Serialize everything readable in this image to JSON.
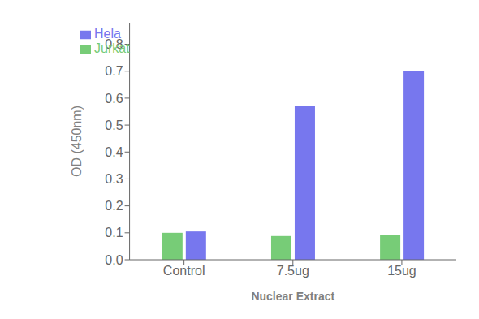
{
  "chart_data": {
    "type": "bar",
    "categories": [
      "Control",
      "7.5ug",
      "15ug"
    ],
    "series": [
      {
        "name": "Jurkat",
        "color": "#77cc77",
        "values": [
          0.1,
          0.088,
          0.092
        ]
      },
      {
        "name": "Hela",
        "color": "#7777ee",
        "values": [
          0.105,
          0.57,
          0.7
        ]
      }
    ],
    "xlabel": "Nuclear Extract",
    "ylabel": "OD (450nm)",
    "ylim": [
      0,
      0.88
    ],
    "yticks": [
      {
        "value": 0.0,
        "label": "0.0"
      },
      0.1,
      0.2,
      0.3,
      0.4,
      0.5,
      0.6,
      0.7,
      0.8
    ],
    "grid": false,
    "legend": "upper left"
  }
}
